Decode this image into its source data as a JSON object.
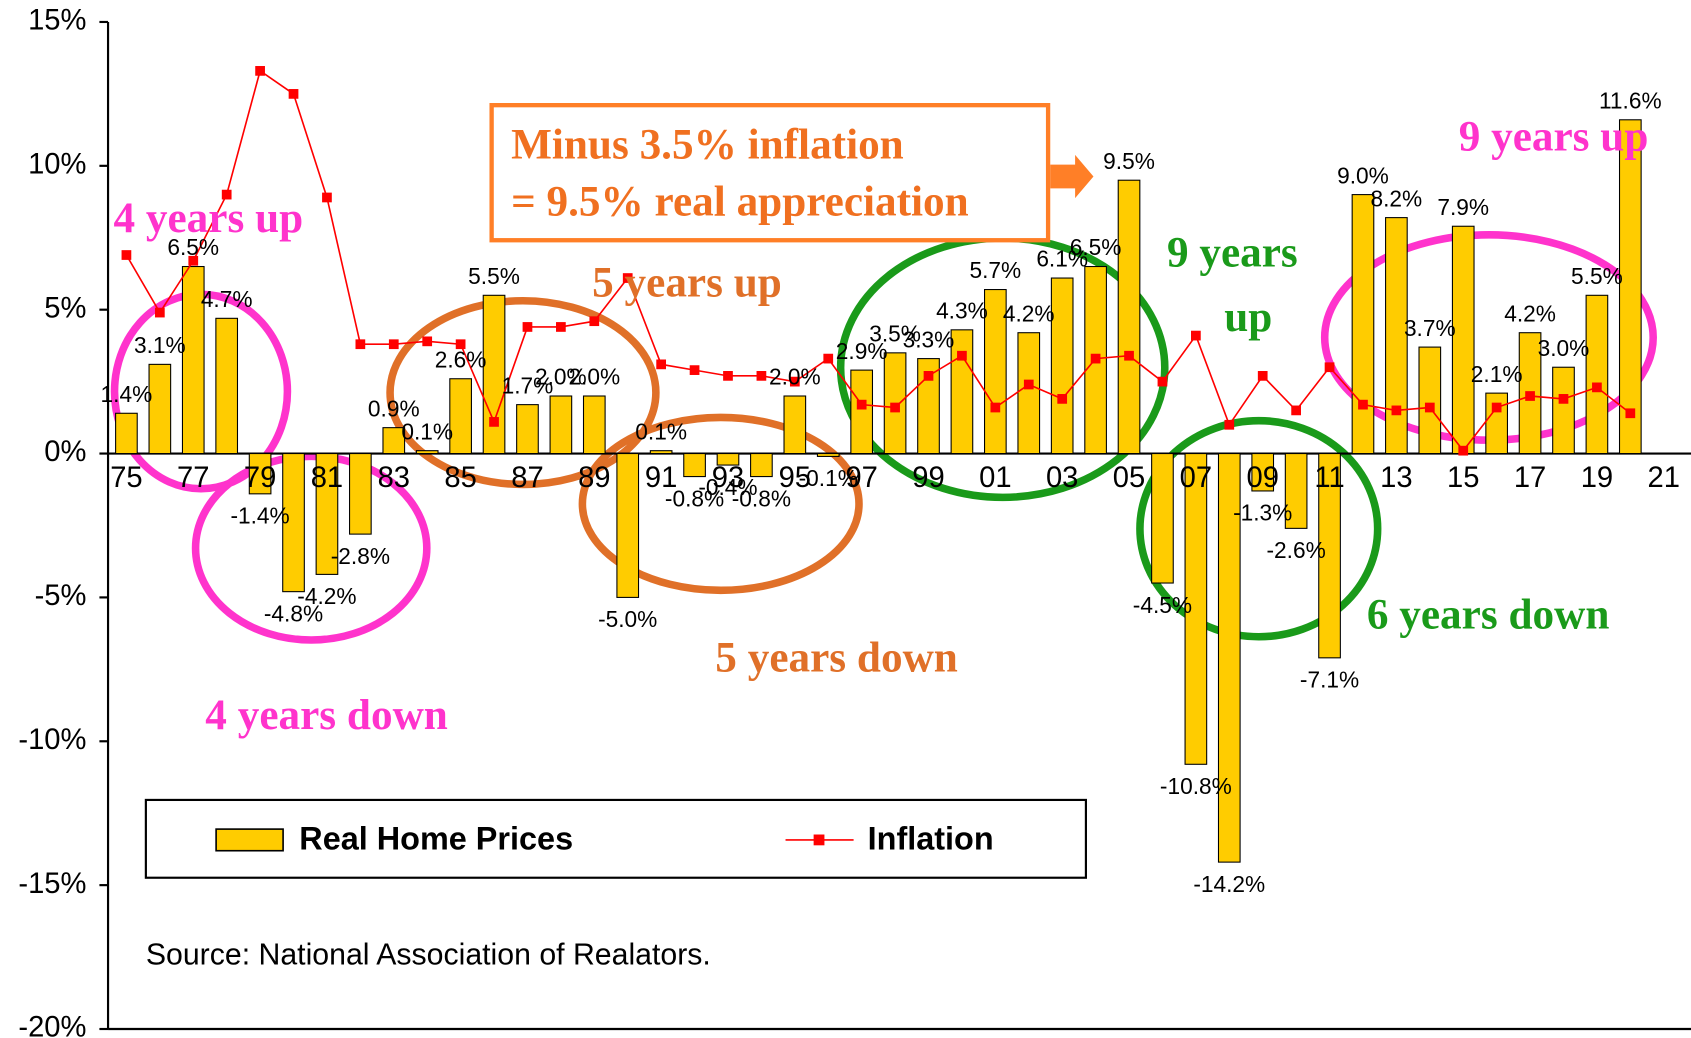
{
  "chart_data": {
    "type": "bar_line",
    "categories": [
      "75",
      null,
      "77",
      null,
      "79",
      null,
      "81",
      null,
      "83",
      null,
      "85",
      null,
      "87",
      null,
      "89",
      null,
      "91",
      null,
      "93",
      null,
      "95",
      null,
      "97",
      null,
      "99",
      null,
      "01",
      null,
      "03",
      null,
      "05",
      null,
      "07",
      null,
      "09",
      null,
      "11",
      null,
      "13",
      null,
      "15",
      null,
      "17",
      null,
      "19",
      null,
      "21"
    ],
    "series": [
      {
        "name": "Real Home Prices",
        "color": "#ffcc00",
        "kind": "bar",
        "values": [
          1.4,
          3.1,
          6.5,
          4.7,
          -1.4,
          -4.8,
          -4.2,
          -2.8,
          0.9,
          0.1,
          2.6,
          5.5,
          1.7,
          2.0,
          2.0,
          -5.0,
          0.1,
          -0.8,
          -0.4,
          -0.8,
          2.0,
          -0.1,
          2.9,
          3.5,
          3.3,
          4.3,
          5.7,
          4.2,
          6.1,
          6.5,
          9.5,
          -4.5,
          -10.8,
          -14.2,
          -1.3,
          -2.6,
          -7.1,
          9.0,
          8.2,
          3.7,
          7.9,
          2.1,
          4.2,
          3.0,
          5.5,
          11.6,
          null
        ],
        "value_labels": [
          "1.4%",
          "3.1%",
          "6.5%",
          "4.7%",
          "-1.4%",
          "-4.8%",
          "-4.2%",
          "-2.8%",
          "0.9%",
          "0.1%",
          "2.6%",
          "5.5%",
          "1.7%",
          "2.0%",
          "2.0%",
          "-5.0%",
          "0.1%",
          "-0.8%",
          "-0.4%",
          "-0.8%",
          "2.0%",
          "-0.1%",
          "2.9%",
          "3.5%",
          "3.3%",
          "4.3%",
          "5.7%",
          "4.2%",
          "6.1%",
          "6.5%",
          "9.5%",
          "-4.5%",
          "-10.8%",
          "-14.2%",
          "-1.3%",
          "-2.6%",
          "-7.1%",
          "9.0%",
          "8.2%",
          "3.7%",
          "7.9%",
          "2.1%",
          "4.2%",
          "3.0%",
          "5.5%",
          "11.6%",
          null
        ]
      },
      {
        "name": "Inflation",
        "color": "#ff0000",
        "kind": "line",
        "values": [
          6.9,
          4.9,
          6.7,
          9.0,
          13.3,
          12.5,
          8.9,
          3.8,
          3.8,
          3.9,
          3.8,
          1.1,
          4.4,
          4.4,
          4.6,
          6.1,
          3.1,
          2.9,
          2.7,
          2.7,
          2.5,
          3.3,
          1.7,
          1.6,
          2.7,
          3.4,
          1.6,
          2.4,
          1.9,
          3.3,
          3.4,
          2.5,
          4.1,
          1.0,
          2.7,
          1.5,
          3.0,
          1.7,
          1.5,
          1.6,
          0.1,
          1.6,
          2.0,
          1.9,
          2.3,
          1.4,
          null
        ]
      }
    ],
    "ylim": [
      -20,
      15
    ],
    "yticks": [
      {
        "value": 15,
        "label": "15%"
      },
      {
        "value": 10,
        "label": "10%"
      },
      {
        "value": 5,
        "label": "5%"
      },
      {
        "value": 0,
        "label": "0%"
      },
      {
        "value": -5,
        "label": "-5%"
      },
      {
        "value": -10,
        "label": "-10%"
      },
      {
        "value": -15,
        "label": "-15%"
      },
      {
        "value": -20,
        "label": "-20%"
      }
    ],
    "annotations": [
      {
        "lines": [
          "4 years up"
        ],
        "color": "#ff33cc"
      },
      {
        "lines": [
          "4 years down"
        ],
        "color": "#ff33cc"
      },
      {
        "lines": [
          "5 years up"
        ],
        "color": "#e07028"
      },
      {
        "lines": [
          "5 years down"
        ],
        "color": "#e07028"
      },
      {
        "lines": [
          "9 years",
          "up"
        ],
        "color": "#1a9a1a"
      },
      {
        "lines": [
          "6 years down"
        ],
        "color": "#1a9a1a"
      },
      {
        "lines": [
          "9 years up"
        ],
        "color": "#ff33cc"
      },
      {
        "lines": [
          "Minus 3.5% inflation",
          "= 9.5% real appreciation"
        ],
        "color": "#f07020"
      }
    ],
    "source": "Source: National Association of Realators."
  }
}
